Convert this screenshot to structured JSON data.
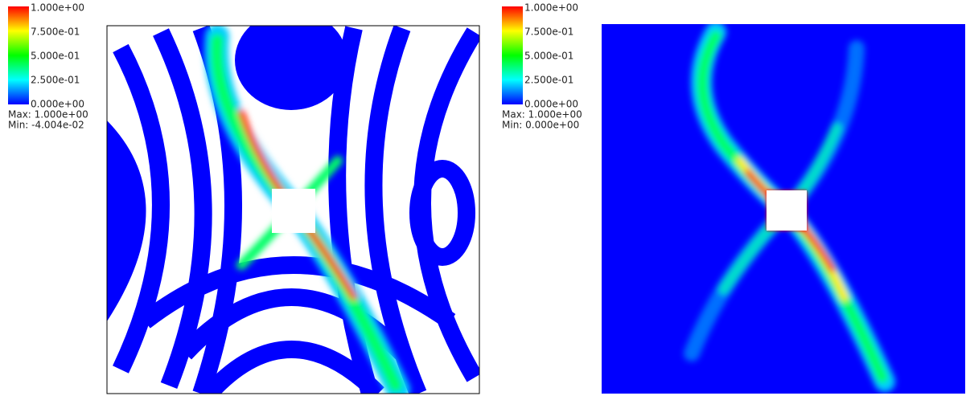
{
  "panels": [
    {
      "colorbar": {
        "labels": [
          "1.000e+00",
          "7.500e-01",
          "5.000e-01",
          "2.500e-01",
          "0.000e+00"
        ]
      },
      "max": "Max:  1.000e+00",
      "min": "Min: -4.004e-02"
    },
    {
      "colorbar": {
        "labels": [
          "1.000e+00",
          "7.500e-01",
          "5.000e-01",
          "2.500e-01",
          "0.000e+00"
        ]
      },
      "max": "Max:  1.000e+00",
      "min": "Min: 0.000e+00"
    }
  ]
}
